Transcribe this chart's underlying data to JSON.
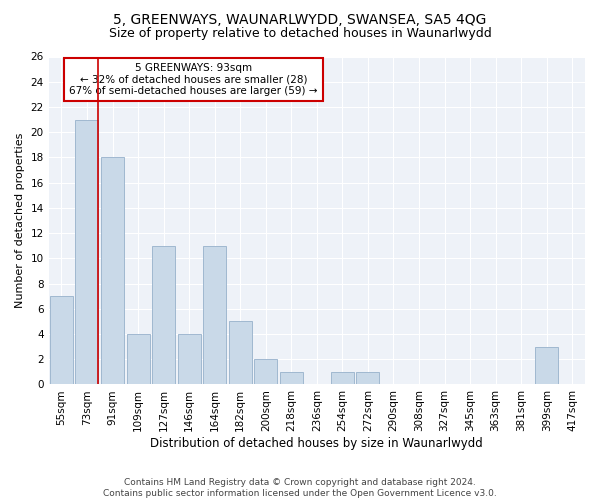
{
  "title": "5, GREENWAYS, WAUNARLWYDD, SWANSEA, SA5 4QG",
  "subtitle": "Size of property relative to detached houses in Waunarlwydd",
  "xlabel": "Distribution of detached houses by size in Waunarlwydd",
  "ylabel": "Number of detached properties",
  "categories": [
    "55sqm",
    "73sqm",
    "91sqm",
    "109sqm",
    "127sqm",
    "146sqm",
    "164sqm",
    "182sqm",
    "200sqm",
    "218sqm",
    "236sqm",
    "254sqm",
    "272sqm",
    "290sqm",
    "308sqm",
    "327sqm",
    "345sqm",
    "363sqm",
    "381sqm",
    "399sqm",
    "417sqm"
  ],
  "values": [
    7,
    21,
    18,
    4,
    11,
    4,
    11,
    5,
    2,
    1,
    0,
    1,
    1,
    0,
    0,
    0,
    0,
    0,
    0,
    3,
    0
  ],
  "bar_color": "#c9d9e8",
  "bar_edge_color": "#a0b8d0",
  "vline_x_index": 1,
  "vline_color": "#cc0000",
  "annotation_box_text": "5 GREENWAYS: 93sqm\n← 32% of detached houses are smaller (28)\n67% of semi-detached houses are larger (59) →",
  "annotation_box_color": "#cc0000",
  "ylim": [
    0,
    26
  ],
  "yticks": [
    0,
    2,
    4,
    6,
    8,
    10,
    12,
    14,
    16,
    18,
    20,
    22,
    24,
    26
  ],
  "background_color": "#eef2f8",
  "grid_color": "#ffffff",
  "footer_line1": "Contains HM Land Registry data © Crown copyright and database right 2024.",
  "footer_line2": "Contains public sector information licensed under the Open Government Licence v3.0.",
  "title_fontsize": 10,
  "subtitle_fontsize": 9,
  "xlabel_fontsize": 8.5,
  "ylabel_fontsize": 8,
  "tick_fontsize": 7.5,
  "annotation_fontsize": 7.5,
  "footer_fontsize": 6.5
}
